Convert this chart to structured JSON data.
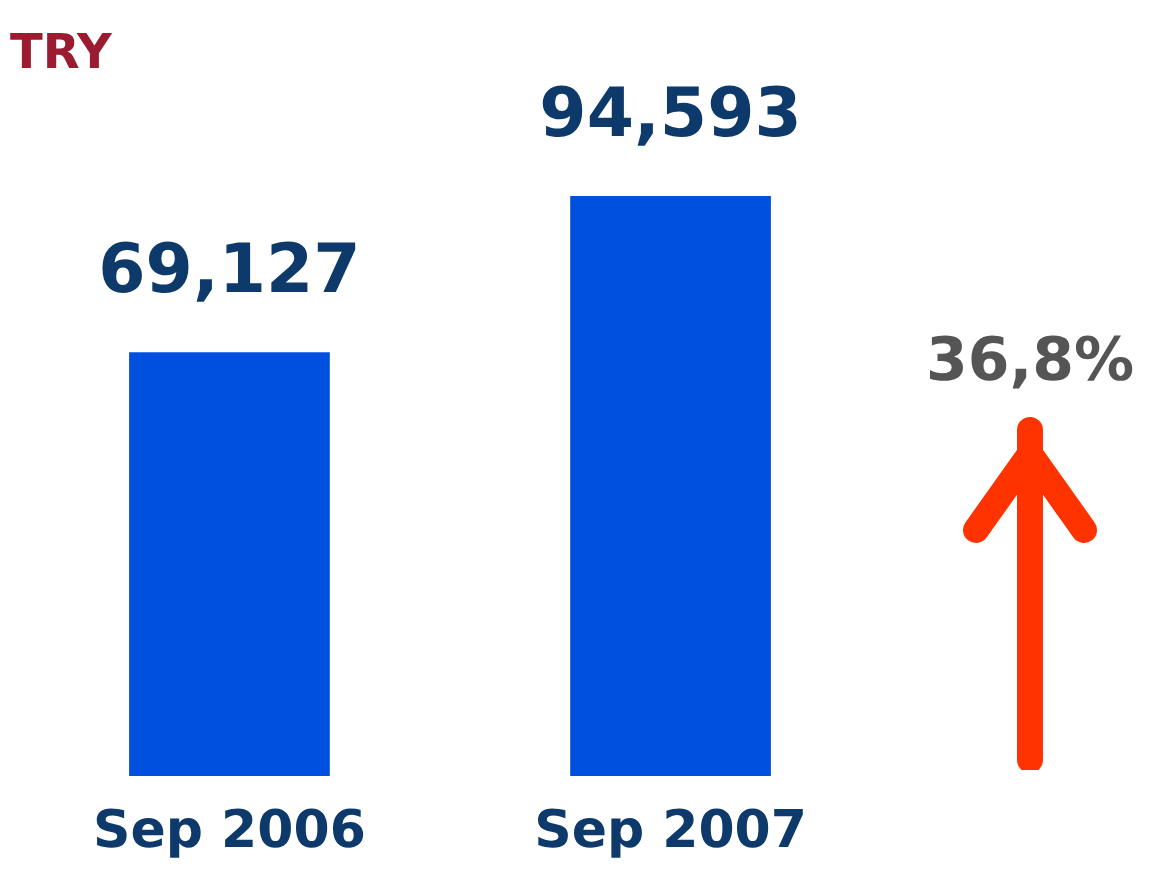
{
  "chart_data": {
    "type": "bar",
    "title": "TRY",
    "categories": [
      "Sep 2006",
      "Sep 2007"
    ],
    "values": [
      69127,
      94593
    ],
    "color": "#0050e0",
    "value_labels": [
      "69,127",
      "94,593"
    ],
    "annotations": [
      "36,8%"
    ]
  }
}
